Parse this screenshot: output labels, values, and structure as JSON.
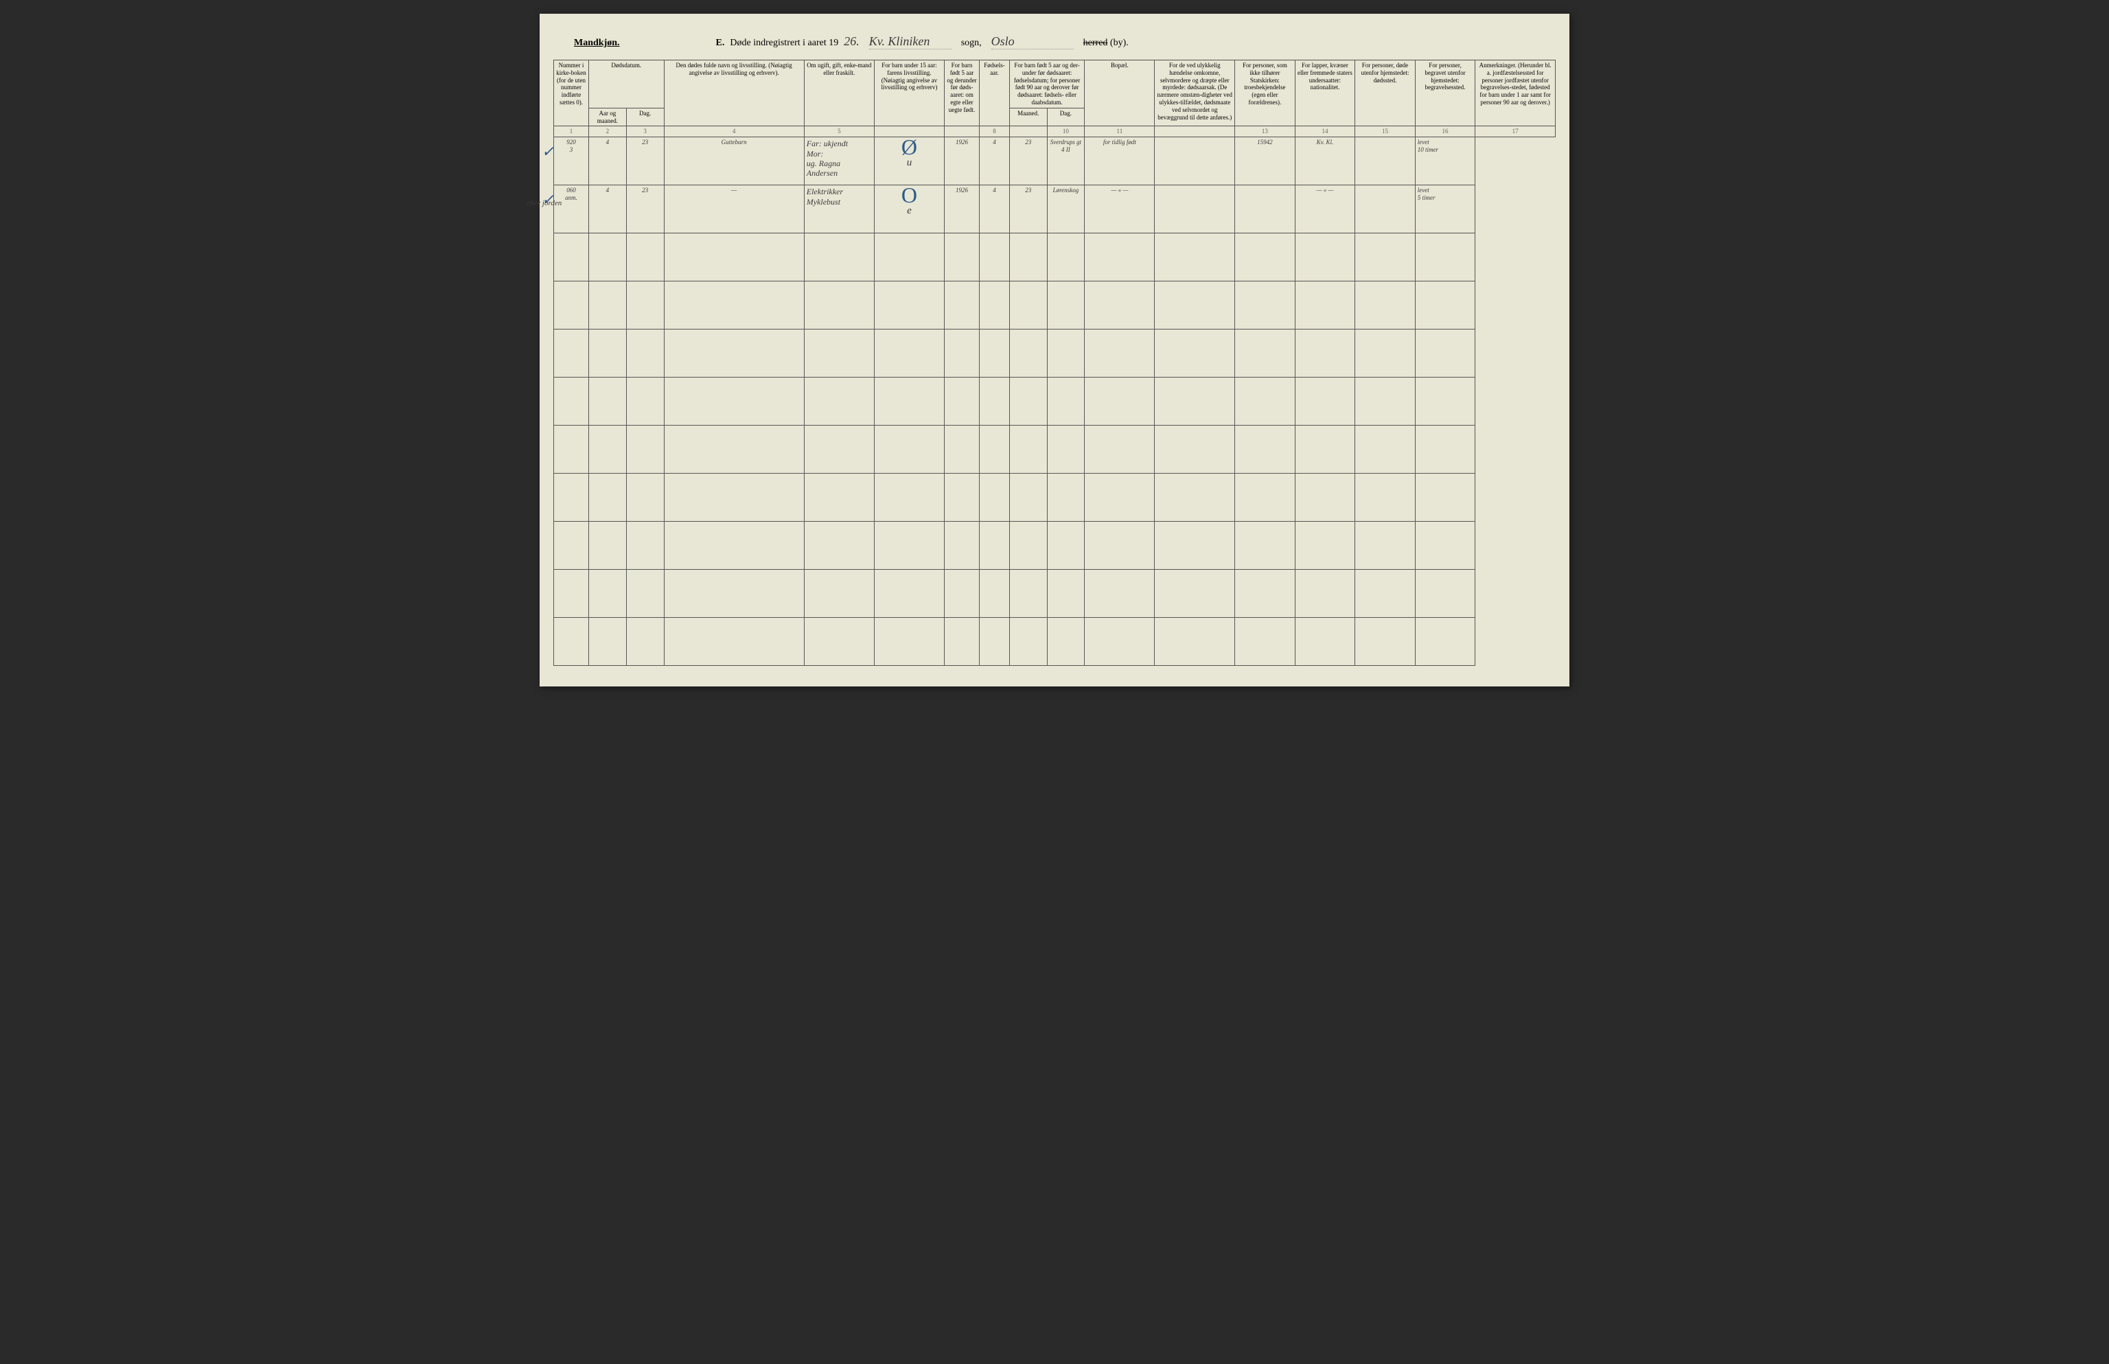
{
  "colors": {
    "paper": "#e8e6d4",
    "ink_print": "#333333",
    "ink_handwriting": "#3a3a3a",
    "ink_blue": "#2a5a8a",
    "border": "#555555",
    "background": "#2a2a2a"
  },
  "header": {
    "gender": "Mandkjøn.",
    "title_prefix": "E.",
    "title_text": "Døde indregistrert i aaret 19",
    "year_hw": "26.",
    "parish_hw": "Kv. Kliniken",
    "sogn_label": "sogn,",
    "district_hw": "Oslo",
    "herred_label_strike": "herred",
    "by_label": "(by)."
  },
  "columns": [
    {
      "num": "1",
      "label": "Nummer i kirke-boken (for de uten nummer indførte sættes 0)."
    },
    {
      "num": "2",
      "label": "Dødsdatum.",
      "sub": [
        "Aar og maaned.",
        "Dag."
      ]
    },
    {
      "num": "4",
      "label": "Den dødes fulde navn og livsstilling. (Nøiagtig angivelse av livsstilling og erhverv)."
    },
    {
      "num": "5",
      "label": "Om ugift, gift, enke-mand eller fraskilt."
    },
    {
      "num": "",
      "label": "For barn under 15 aar: farens livsstilling. (Nøiagtig angivelse av livsstilling og erhverv)"
    },
    {
      "num": "",
      "label": "For barn født 5 aar og derunder før døds-aaret: om egte eller uegte født."
    },
    {
      "num": "8",
      "label": "Fødsels-aar."
    },
    {
      "num": "",
      "label": "For barn født 5 aar og der-under før dødsaaret: fødselsdatum; for personer født 90 aar og derover før dødsaaret: fødsels- eller daabsdatum.",
      "sub": [
        "Maaned.",
        "Dag."
      ]
    },
    {
      "num": "11",
      "label": "Bopæl."
    },
    {
      "num": "",
      "label": "For de ved ulykkelig hændelse omkomne, selvmordere og dræpte eller myrdede: dødsaarsak. (De nærmere omstæn-digheter ved ulykkes-tilfældet, dødsmaate ved selvmordet og bevæggrund til dette anføres.)"
    },
    {
      "num": "13",
      "label": "For personer, som ikke tilhører Statskirken: troesbekjendelse (egen eller forældrenes)."
    },
    {
      "num": "14",
      "label": "For lapper, kvæner eller fremmede staters undersaatter: nationalitet."
    },
    {
      "num": "15",
      "label": "For personer, døde utenfor hjemstedet: dødssted."
    },
    {
      "num": "16",
      "label": "For personer, begravet utenfor hjemstedet: begravelsessted."
    },
    {
      "num": "17",
      "label": "Anmerkninger. (Herunder bl. a. jordfæstelsessted for personer jordfæstet utenfor begravelses-stedet, fødested for barn under 1 aar samt for personer 90 aar og derover.)"
    }
  ],
  "rows": [
    {
      "check": "✓",
      "margin": "",
      "num": "920\n3",
      "month": "4",
      "day": "23",
      "name": "Guttebarn",
      "status": "Far: ukjendt\nMor:\nug. Ragna Andersen",
      "under15": "u",
      "birth_year": "1926",
      "birth_month": "4",
      "birth_day": "23",
      "address": "Sverdrups gt 4 II",
      "cause": "for tidlig født",
      "church": "",
      "nation": "15942",
      "death_place": "Kv. Kl.",
      "burial_place": "",
      "remarks": "levet\n10 timer",
      "big_mark": "Ø"
    },
    {
      "check": "✓",
      "margin": "efter jorden",
      "num": "060\nanm.",
      "month": "4",
      "day": "23",
      "name": "—",
      "status": "Elektrikker\nMyklebust",
      "under15": "e",
      "birth_year": "1926",
      "birth_month": "4",
      "birth_day": "23",
      "address": "Lørenskog",
      "cause": "— « —",
      "church": "",
      "nation": "",
      "death_place": "— « —",
      "burial_place": "",
      "remarks": "levet\n5 timer",
      "big_mark": "O"
    }
  ],
  "empty_rows": 9
}
